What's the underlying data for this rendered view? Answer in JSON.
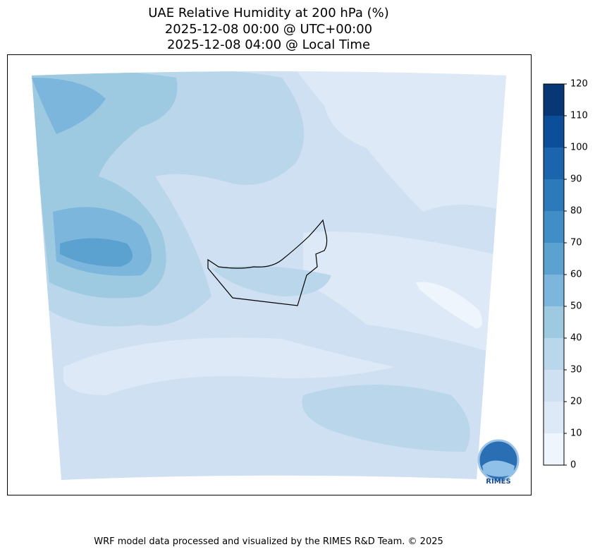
{
  "chart_data": {
    "type": "filled-contour-map",
    "title": "UAE Relative Humidity at 200 hPa (%)",
    "subtitle": [
      "2025-12-08 00:00 @ UTC+00:00",
      "2025-12-08 04:00 @ Local Time"
    ],
    "colorbar": {
      "ticks": [
        0,
        10,
        20,
        30,
        40,
        50,
        60,
        70,
        80,
        90,
        100,
        110,
        120
      ],
      "colors": [
        "#eef5fc",
        "#dde9f6",
        "#cfe0f2",
        "#b9d6ea",
        "#9dc9e1",
        "#7cb6dc",
        "#5ca2d0",
        "#418ec6",
        "#2d7abb",
        "#1b65ac",
        "#0c4e98",
        "#083776"
      ]
    }
  },
  "footer": "WRF model data processed and visualized by the RIMES R&D Team. © 2025",
  "logo": {
    "text": "RIMES"
  }
}
